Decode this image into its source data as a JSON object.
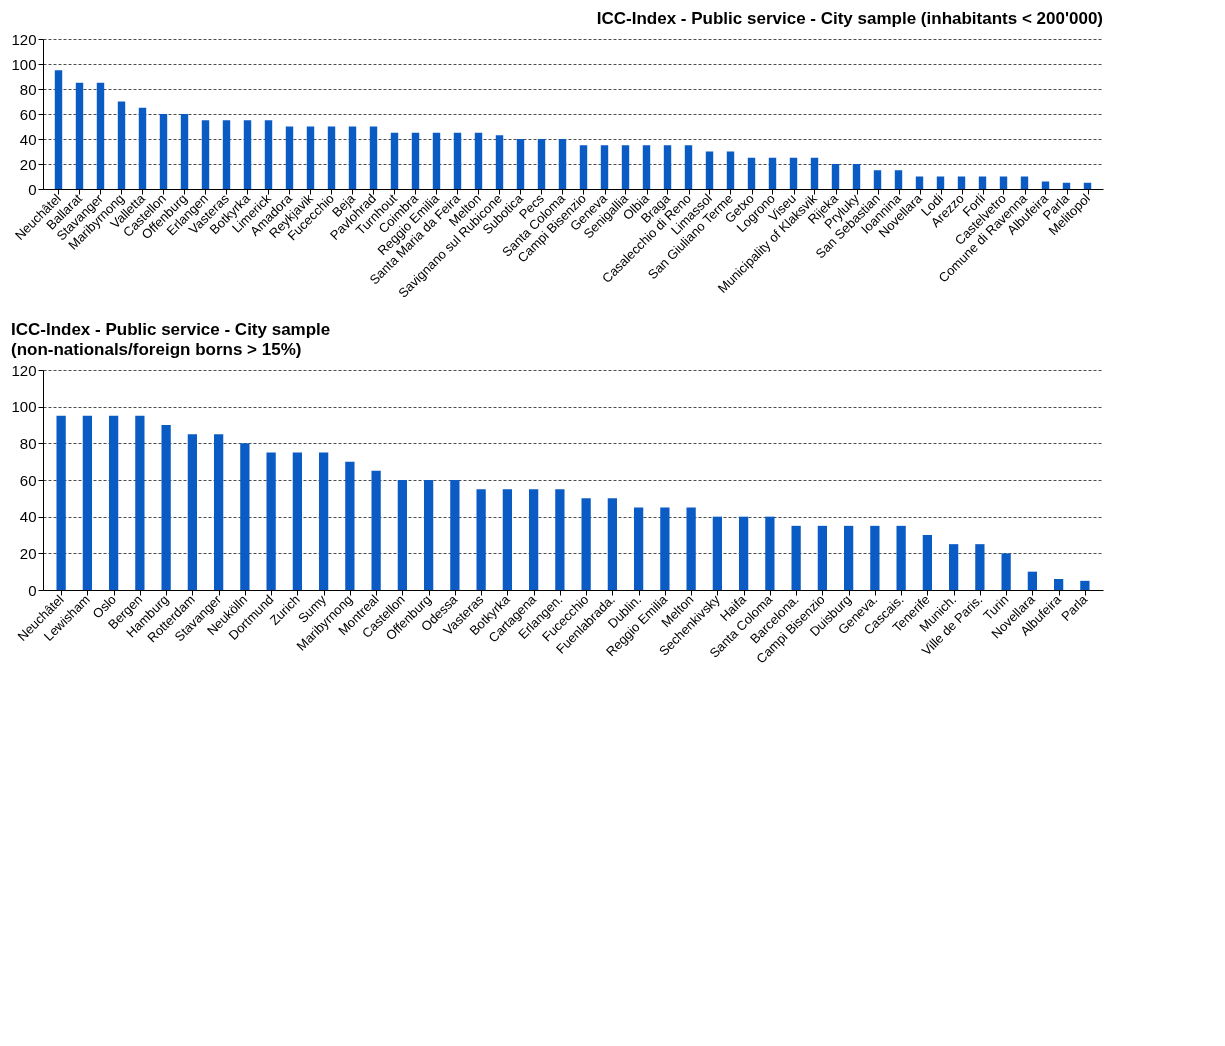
{
  "chart_data": [
    {
      "type": "bar",
      "title": "ICC-Index - Public service - City sample (inhabitants < 200'000)",
      "categories": [
        "Neuchâtel",
        "Ballarat",
        "Stavanger",
        "Maribyrnong",
        "Valletta",
        "Castellon",
        "Offenburg",
        "Erlangen",
        "Vasteras",
        "Botkyrka",
        "Limerick",
        "Amadora",
        "Reykjavik",
        "Fucecchio",
        "Beja",
        "Pavlohrad",
        "Turnhout",
        "Coimbra",
        "Reggio Emilia",
        "Santa Maria da Feira",
        "Melton",
        "Savignano sul Rubicone",
        "Subotica",
        "Pecs",
        "Santa Coloma",
        "Campi Bisenzio",
        "Geneva",
        "Senigallia",
        "Olbia",
        "Braga",
        "Casalecchio di Reno",
        "Limassol",
        "San Giuliano Terme",
        "Getxo",
        "Logrono",
        "Viseu",
        "Municipality of Klaksvik",
        "Rijeka",
        "Pryluky",
        "San Sebastian",
        "Ioannina",
        "Novellara",
        "Lodi",
        "Arezzo",
        "Forli",
        "Castelvetro",
        "Comune di Ravenna",
        "Albufeira",
        "Parla",
        "Melitopol"
      ],
      "values": [
        95,
        85,
        85,
        70,
        65,
        60,
        60,
        55,
        55,
        55,
        55,
        50,
        50,
        50,
        50,
        50,
        45,
        45,
        45,
        45,
        45,
        43,
        40,
        40,
        40,
        35,
        35,
        35,
        35,
        35,
        35,
        30,
        30,
        25,
        25,
        25,
        25,
        20,
        20,
        15,
        15,
        10,
        10,
        10,
        10,
        10,
        10,
        6,
        5,
        5
      ],
      "color": "#0a5bc4",
      "ylim": [
        0,
        120
      ],
      "yticks": [
        0,
        20,
        40,
        60,
        80,
        100,
        120
      ],
      "grid": "y"
    },
    {
      "type": "bar",
      "title": "ICC-Index - Public service - City sample",
      "subtitle": "(non-nationals/foreign borns > 15%)",
      "categories": [
        "Neuchâtel",
        "Lewisham",
        "Oslo",
        "Bergen",
        "Hamburg",
        "Rotterdam",
        "Stavanger",
        "Neukölln",
        "Dortmund",
        "Zurich",
        "Sumy",
        "Maribyrnong",
        "Montreal",
        "Castellon",
        "Offenburg",
        "Odessa",
        "Vasteras",
        "Botkyrka",
        "Cartagena",
        "Erlangen.",
        "Fucecchio",
        "Fuenlabrada.",
        "Dublin.",
        "Reggio Emilia",
        "Melton",
        "Sechenkivsky",
        "Haifa",
        "Santa Coloma",
        "Barcelona.",
        "Campi Bisenzio",
        "Duisburg",
        "Geneva.",
        "Cascais.",
        "Tenerife",
        "Munich.",
        "Ville de Paris.",
        "Turin",
        "Novellara",
        "Albufeira",
        "Parla"
      ],
      "values": [
        95,
        95,
        95,
        95,
        90,
        85,
        85,
        80,
        75,
        75,
        75,
        70,
        65,
        60,
        60,
        60,
        55,
        55,
        55,
        55,
        50,
        50,
        45,
        45,
        45,
        40,
        40,
        40,
        35,
        35,
        35,
        35,
        35,
        30,
        25,
        25,
        20,
        10,
        6,
        5
      ],
      "color": "#0a5bc4",
      "ylim": [
        0,
        120
      ],
      "yticks": [
        0,
        20,
        40,
        60,
        80,
        100,
        120
      ],
      "grid": "y"
    }
  ]
}
